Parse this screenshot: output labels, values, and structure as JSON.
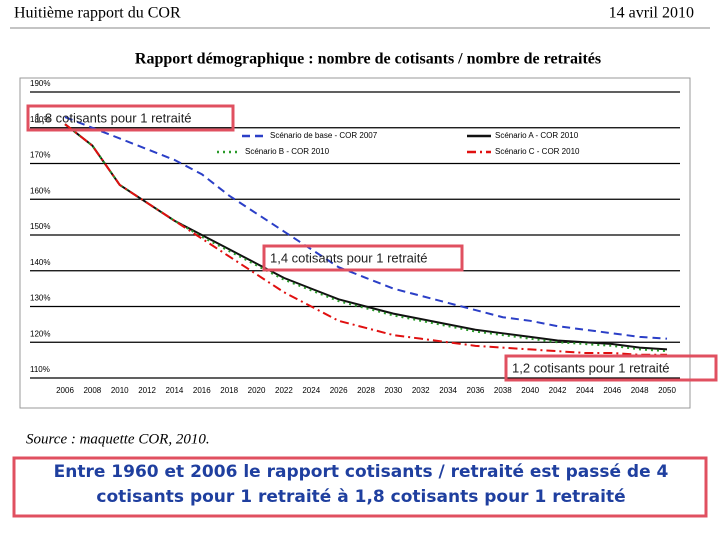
{
  "header": {
    "left": "Huitième rapport du COR",
    "right": "14 avril 2010"
  },
  "chart_data": {
    "type": "line",
    "title": "Rapport démographique : nombre de cotisants / nombre de retraités",
    "source": "Source : maquette COR, 2010.",
    "annotations": [
      "1,8 cotisants pour 1 retraité",
      "1,4 cotisants pour 1 retraité",
      "1,2 cotisants pour 1 retraité"
    ],
    "x": [
      2006,
      2008,
      2010,
      2012,
      2014,
      2016,
      2018,
      2020,
      2022,
      2024,
      2026,
      2028,
      2030,
      2032,
      2034,
      2036,
      2038,
      2040,
      2042,
      2044,
      2046,
      2048,
      2050
    ],
    "xlim": [
      2006,
      2050
    ],
    "xticks": [
      2006,
      2008,
      2010,
      2012,
      2014,
      2016,
      2018,
      2020,
      2022,
      2024,
      2026,
      2028,
      2030,
      2032,
      2034,
      2036,
      2038,
      2040,
      2042,
      2044,
      2046,
      2048,
      2050
    ],
    "ylim": [
      110,
      190
    ],
    "yticks": [
      {
        "value": 110,
        "label": "110%"
      },
      {
        "value": 120,
        "label": "120%"
      },
      {
        "value": 130,
        "label": "130%"
      },
      {
        "value": 140,
        "label": "140%"
      },
      {
        "value": 150,
        "label": "150%"
      },
      {
        "value": 160,
        "label": "160%"
      },
      {
        "value": 170,
        "label": "170%"
      },
      {
        "value": 180,
        "label": "180%"
      },
      {
        "value": 190,
        "label": "190%"
      }
    ],
    "grid": true,
    "series": [
      {
        "name": "Scénario de base - COR 2007",
        "color": "#2b3fc7",
        "dash": "8 5",
        "values": [
          183,
          180,
          177,
          174,
          171,
          167,
          161,
          156,
          151,
          146,
          141,
          138,
          135,
          133,
          131,
          129,
          127,
          126,
          124.5,
          123.5,
          122.5,
          121.5,
          121
        ]
      },
      {
        "name": "Scénario A - COR 2010",
        "color": "#111111",
        "dash": "none",
        "values": [
          181,
          175,
          164,
          159,
          154,
          150,
          146,
          142,
          138,
          135,
          132,
          130,
          128,
          126.5,
          125,
          123.5,
          122.5,
          121.5,
          120.5,
          120,
          119.5,
          118.5,
          118
        ]
      },
      {
        "name": "Scénario B - COR 2010",
        "color": "#2a9a2a",
        "dash": "2 4",
        "values": [
          181,
          175,
          164,
          159,
          154,
          149.5,
          145.5,
          141.5,
          137.5,
          134.5,
          131.5,
          129.5,
          127.5,
          126,
          124.5,
          123,
          122,
          121,
          120,
          119.5,
          119,
          118,
          117.5
        ]
      },
      {
        "name": "Scénario C - COR 2010",
        "color": "#e01010",
        "dash": "9 4 2 4",
        "values": [
          181,
          175,
          164,
          159,
          154,
          149,
          144,
          139,
          134,
          130,
          126,
          124,
          122,
          121,
          120,
          119,
          118.5,
          118,
          117.5,
          117,
          117,
          116.5,
          116.5
        ]
      }
    ]
  },
  "footer_text": "Entre 1960 et 2006 le rapport cotisants / retraité est passé de 4 cotisants pour 1 retraité à 1,8 cotisants pour 1 retraité"
}
